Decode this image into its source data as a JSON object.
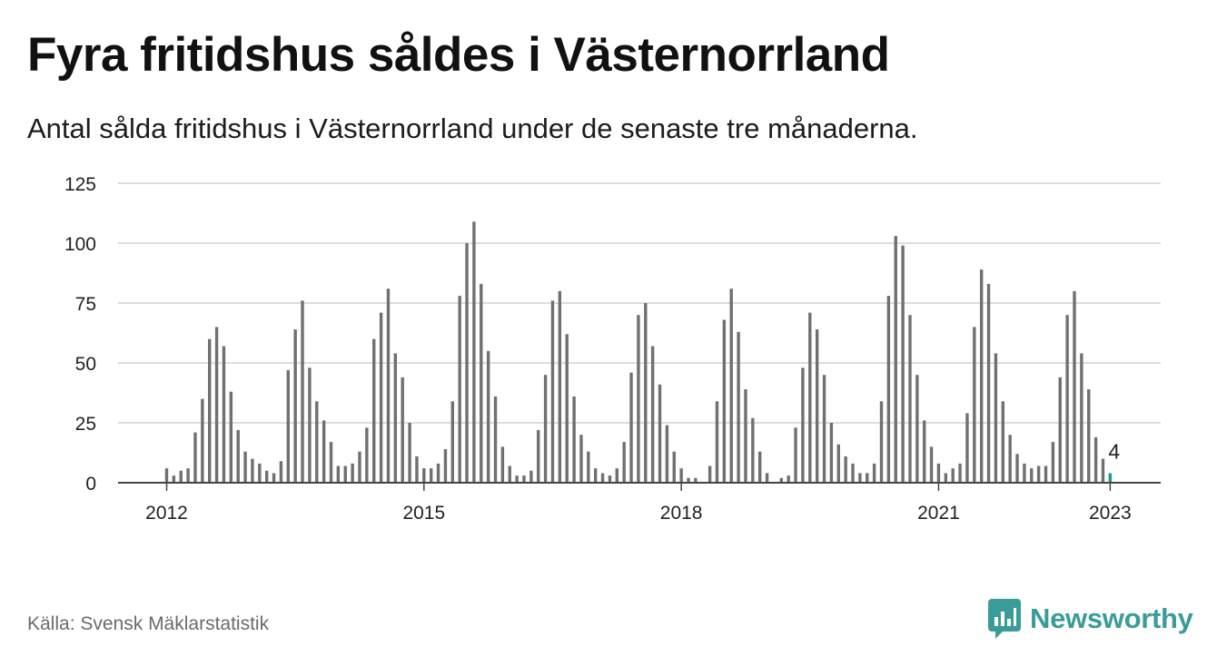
{
  "title": "Fyra fritidshus såldes i Västernorrland",
  "subtitle": "Antal sålda fritidshus i Västernorrland under de senaste tre månaderna.",
  "source": "Källa: Svensk Mäklarstatistik",
  "logo": {
    "text": "Newsworthy",
    "icon": "bar-chart-bubble-icon",
    "color": "#3a9c98"
  },
  "colors": {
    "bar": "#707070",
    "highlight": "#1a9c96",
    "grid": "#dddddd",
    "axis": "#444444"
  },
  "chart_data": {
    "type": "bar",
    "title": "",
    "xlabel": "",
    "ylabel": "",
    "ylim": [
      0,
      125
    ],
    "yticks": [
      0,
      25,
      50,
      75,
      100,
      125
    ],
    "xticks": [
      {
        "label": "2012",
        "index": 0
      },
      {
        "label": "2015",
        "index": 36
      },
      {
        "label": "2018",
        "index": 72
      },
      {
        "label": "2021",
        "index": 108
      },
      {
        "label": "2023",
        "index": 132
      }
    ],
    "start": "2012-01",
    "interval": "month",
    "values": [
      6,
      3,
      5,
      6,
      21,
      35,
      60,
      65,
      57,
      38,
      22,
      13,
      10,
      8,
      5,
      4,
      9,
      47,
      64,
      76,
      48,
      34,
      26,
      17,
      7,
      7,
      8,
      13,
      23,
      60,
      71,
      81,
      54,
      44,
      25,
      11,
      6,
      6,
      8,
      14,
      34,
      78,
      100,
      109,
      83,
      55,
      36,
      15,
      7,
      3,
      3,
      5,
      22,
      45,
      76,
      80,
      62,
      36,
      20,
      13,
      6,
      4,
      3,
      6,
      17,
      46,
      70,
      75,
      57,
      41,
      24,
      13,
      6,
      2,
      2,
      0,
      7,
      34,
      68,
      81,
      63,
      39,
      27,
      13,
      4,
      0,
      2,
      3,
      23,
      48,
      71,
      64,
      45,
      25,
      16,
      11,
      8,
      4,
      4,
      8,
      34,
      78,
      103,
      99,
      70,
      45,
      26,
      15,
      8,
      4,
      6,
      8,
      29,
      65,
      89,
      83,
      54,
      34,
      20,
      12,
      8,
      6,
      7,
      7,
      17,
      44,
      70,
      80,
      54,
      39,
      19,
      10,
      4
    ],
    "highlight": {
      "index": 132,
      "value": 4,
      "label": "4"
    }
  }
}
